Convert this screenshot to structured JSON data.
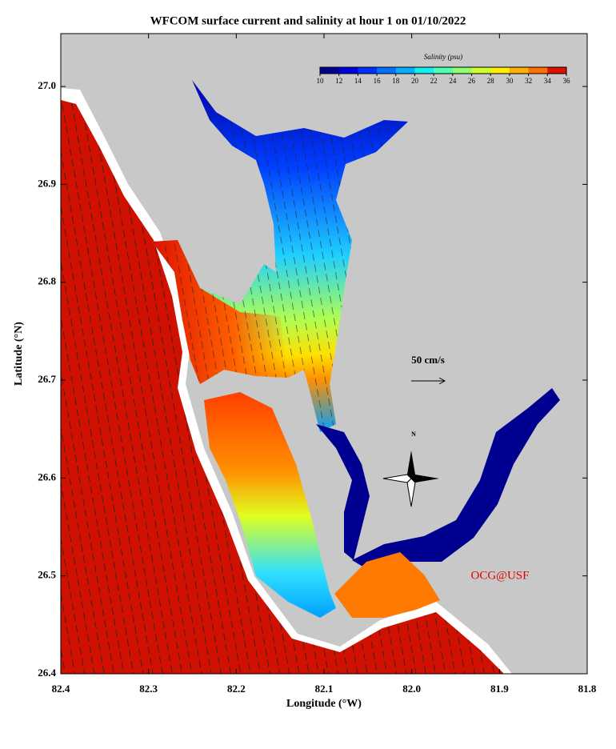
{
  "chart_data": {
    "type": "map",
    "title": "WFCOM surface current and salinity at hour 1 on 01/10/2022",
    "x_label": "Longitude (°W)",
    "y_label": "Latitude (°N)",
    "xlim": [
      82.4,
      81.8
    ],
    "xticks": [
      82.4,
      82.3,
      82.2,
      82.1,
      {
        "value": 82,
        "label": "82.0"
      },
      81.9,
      81.8
    ],
    "ylim": [
      26.4,
      27.054
    ],
    "yticks": [
      26.4,
      26.5,
      26.6,
      26.7,
      26.8,
      26.9,
      {
        "value": 27,
        "label": "27.0"
      }
    ],
    "colorbar": {
      "title": "Salinity (psu)",
      "ticks": [
        10,
        12,
        14,
        16,
        18,
        20,
        22,
        24,
        26,
        28,
        30,
        32,
        34,
        36
      ],
      "colors": [
        "#00008f",
        "#0000df",
        "#0030ff",
        "#0070ff",
        "#00b0ff",
        "#10f0ef",
        "#50ffaf",
        "#90ff6f",
        "#d0ff2f",
        "#ffef00",
        "#ffaf00",
        "#ff6f00",
        "#e01000"
      ]
    },
    "scale_label": "50 cm/s",
    "north_label": "N",
    "credit": "OCG@USF"
  }
}
